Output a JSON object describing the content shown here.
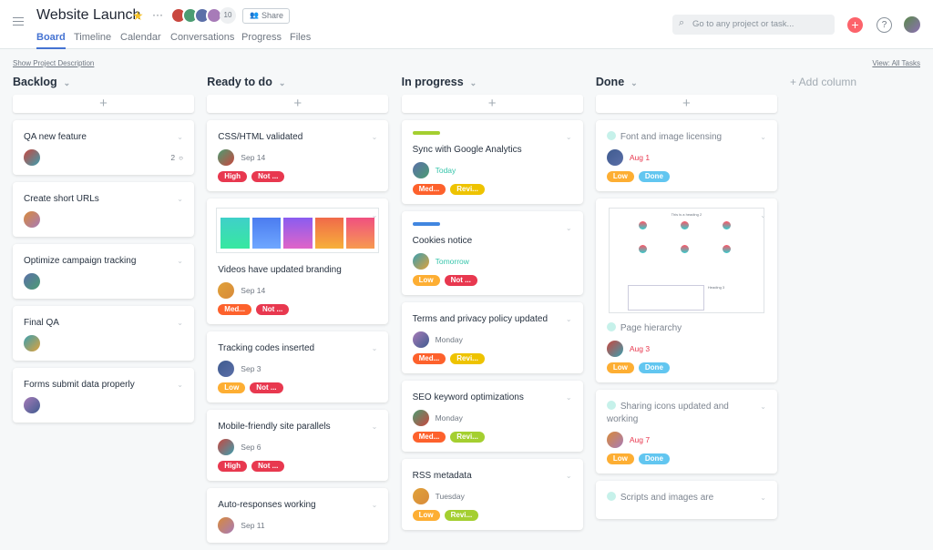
{
  "header": {
    "title": "Website Launch",
    "member_count": "10",
    "share": "Share",
    "tabs": [
      "Board",
      "Timeline",
      "Calendar",
      "Conversations",
      "Progress",
      "Files"
    ],
    "active_tab": 0,
    "search_placeholder": "Go to any project or task...",
    "help": "?"
  },
  "toolbar": {
    "description_link": "Show Project Description",
    "view": "View: All Tasks"
  },
  "add_column": "+ Add column",
  "columns": [
    {
      "name": "Backlog",
      "tasks": [
        {
          "title": "QA new feature",
          "comments": "2"
        },
        {
          "title": "Create short URLs"
        },
        {
          "title": "Optimize campaign tracking"
        },
        {
          "title": "Final QA"
        },
        {
          "title": "Forms submit data properly"
        }
      ]
    },
    {
      "name": "Ready to do",
      "tasks": [
        {
          "title": "CSS/HTML validated",
          "date": "Sep 14",
          "tags": [
            {
              "label": "High",
              "color": "#e8384f"
            },
            {
              "label": "Not ...",
              "color": "#e8384f"
            }
          ]
        },
        {
          "title": "Videos have updated branding",
          "image": "gradients",
          "date": "Sep 14",
          "tags": [
            {
              "label": "Med...",
              "color": "#fd612c"
            },
            {
              "label": "Not ...",
              "color": "#e8384f"
            }
          ]
        },
        {
          "title": "Tracking codes inserted",
          "date": "Sep 3",
          "tags": [
            {
              "label": "Low",
              "color": "#fdae33"
            },
            {
              "label": "Not ...",
              "color": "#e8384f"
            }
          ]
        },
        {
          "title": "Mobile-friendly site parallels",
          "date": "Sep 6",
          "tags": [
            {
              "label": "High",
              "color": "#e8384f"
            },
            {
              "label": "Not ...",
              "color": "#e8384f"
            }
          ]
        },
        {
          "title": "Auto-responses working",
          "date": "Sep 11"
        }
      ]
    },
    {
      "name": "In progress",
      "tasks": [
        {
          "title": "Sync with Google Analytics",
          "bar": "#a4cf30",
          "date": "Today",
          "date_color": "#37c5ab",
          "tags": [
            {
              "label": "Med...",
              "color": "#fd612c"
            },
            {
              "label": "Revi...",
              "color": "#eec300"
            }
          ]
        },
        {
          "title": "Cookies notice",
          "bar": "#4186e0",
          "date": "Tomorrow",
          "date_color": "#37c5ab",
          "tags": [
            {
              "label": "Low",
              "color": "#fdae33"
            },
            {
              "label": "Not ...",
              "color": "#e8384f"
            }
          ]
        },
        {
          "title": "Terms and privacy policy updated",
          "date": "Monday",
          "tags": [
            {
              "label": "Med...",
              "color": "#fd612c"
            },
            {
              "label": "Revi...",
              "color": "#eec300"
            }
          ]
        },
        {
          "title": "SEO keyword optimizations",
          "date": "Monday",
          "tags": [
            {
              "label": "Med...",
              "color": "#fd612c"
            },
            {
              "label": "Revi...",
              "color": "#a4cf30"
            }
          ]
        },
        {
          "title": "RSS metadata",
          "date": "Tuesday",
          "tags": [
            {
              "label": "Low",
              "color": "#fdae33"
            },
            {
              "label": "Revi...",
              "color": "#a4cf30"
            }
          ]
        }
      ]
    },
    {
      "name": "Done",
      "tasks": [
        {
          "title": "Font and image licensing",
          "done": true,
          "date": "Aug 1",
          "date_color": "#e8384f",
          "tags": [
            {
              "label": "Low",
              "color": "#fdae33"
            },
            {
              "label": "Done",
              "color": "#62c6f0"
            }
          ]
        },
        {
          "title": "Page hierarchy",
          "done": true,
          "image": "wireframe",
          "image_heading": "This is a heading 2",
          "image_subheading": "Heading 3",
          "date": "Aug 3",
          "date_color": "#e8384f",
          "tags": [
            {
              "label": "Low",
              "color": "#fdae33"
            },
            {
              "label": "Done",
              "color": "#62c6f0"
            }
          ]
        },
        {
          "title": "Sharing icons updated and working",
          "done": true,
          "date": "Aug 7",
          "date_color": "#e8384f",
          "tags": [
            {
              "label": "Low",
              "color": "#fdae33"
            },
            {
              "label": "Done",
              "color": "#62c6f0"
            }
          ]
        },
        {
          "title": "Scripts and images are",
          "done": true
        }
      ]
    }
  ]
}
